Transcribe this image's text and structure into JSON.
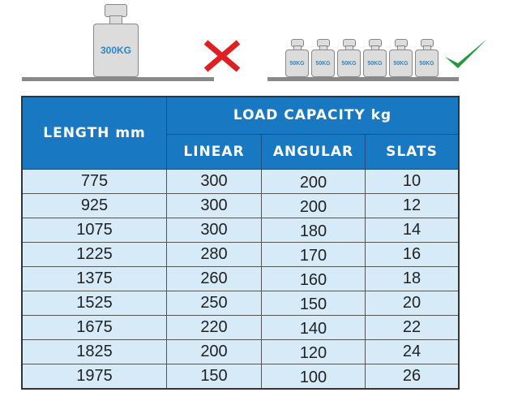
{
  "illustration": {
    "single_weight_label": "300KG",
    "small_weight_labels": [
      "50KG",
      "50KG",
      "50KG",
      "50KG",
      "50KG",
      "50KG"
    ],
    "wrong_icon": "cross-icon",
    "right_icon": "checkmark-icon",
    "colors": {
      "cross": "#e02020",
      "check": "#1e9a3a",
      "weight_text": "#2a86c8"
    }
  },
  "table": {
    "header_length": "LENGTH mm",
    "header_group": "LOAD CAPACITY kg",
    "subheaders": [
      "LINEAR",
      "ANGULAR",
      "SLATS"
    ],
    "rows": [
      [
        "775",
        "300",
        "200",
        "10"
      ],
      [
        "925",
        "300",
        "200",
        "12"
      ],
      [
        "1075",
        "300",
        "180",
        "14"
      ],
      [
        "1225",
        "280",
        "170",
        "16"
      ],
      [
        "1375",
        "260",
        "160",
        "18"
      ],
      [
        "1525",
        "250",
        "150",
        "20"
      ],
      [
        "1675",
        "220",
        "140",
        "22"
      ],
      [
        "1825",
        "200",
        "120",
        "24"
      ],
      [
        "1975",
        "150",
        "100",
        "26"
      ]
    ],
    "colors": {
      "header": "#1878c2",
      "row": "#d6eaf8"
    }
  }
}
